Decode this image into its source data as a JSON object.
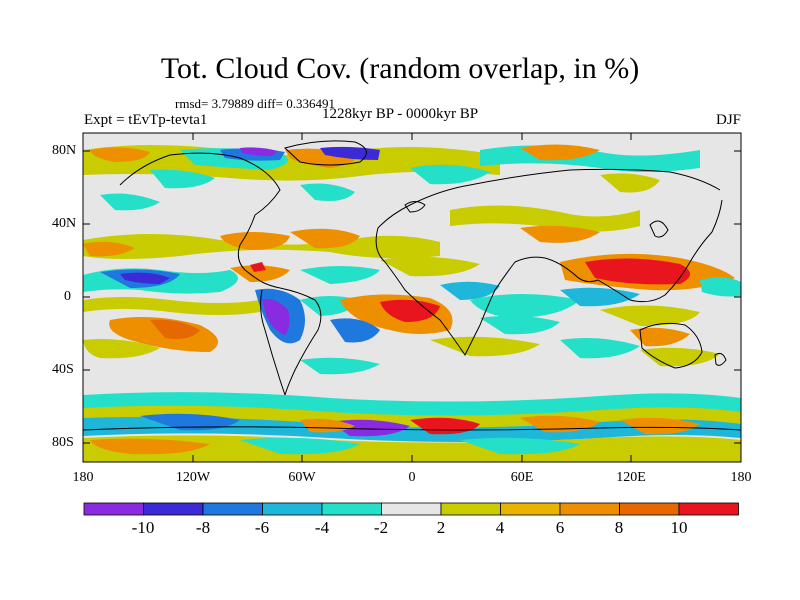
{
  "header": {
    "title": "Tot. Cloud Cov. (random overlap, in %)",
    "stats": "rmsd= 3.79889 diff= 0.336491",
    "period": "1228kyr BP - 0000kyr BP",
    "experiment": "Expt = tEvTp-tevta1",
    "season": "DJF"
  },
  "map": {
    "lat_labels": [
      "80N",
      "40N",
      "0",
      "40S",
      "80S"
    ],
    "lon_labels": [
      "180",
      "120W",
      "60W",
      "0",
      "60E",
      "120E",
      "180"
    ],
    "background_color": "#e6e6e6"
  },
  "colorbar": {
    "labels": [
      "-10",
      "-8",
      "-6",
      "-4",
      "-2",
      "2",
      "4",
      "6",
      "8",
      "10"
    ],
    "colors": [
      "#8a2be2",
      "#3b2ad6",
      "#1e78de",
      "#1fb7d9",
      "#24e0c9",
      "#e6e6e6",
      "#c8cc00",
      "#e8b400",
      "#ee8f00",
      "#e66800",
      "#e8141e"
    ]
  }
}
